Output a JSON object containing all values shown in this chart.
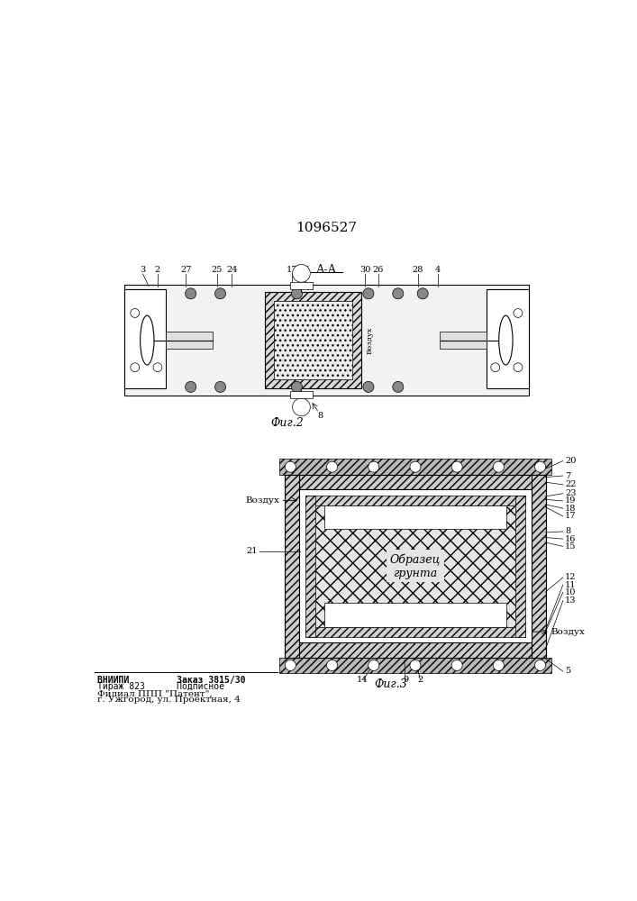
{
  "title_number": "1096527",
  "fig2_label": "А-А",
  "fig2_caption": "Фиг.2",
  "fig3_caption": "Фиг.3",
  "vozdukh_left": "Воздух",
  "vozdukh_right": "Воздух",
  "obrazec_label": "Образец\nгрунта",
  "vniiipi_line1": "ВНИИПИ         Заказ 3815/30",
  "vniiipi_line2": "Тираж 823      Подписное",
  "filial_line1": "Филиал ППП \"Патент\",",
  "filial_line2": "г. Ужгород, ул. Проектная, 4",
  "bg_color": "#ffffff",
  "line_color": "#000000"
}
